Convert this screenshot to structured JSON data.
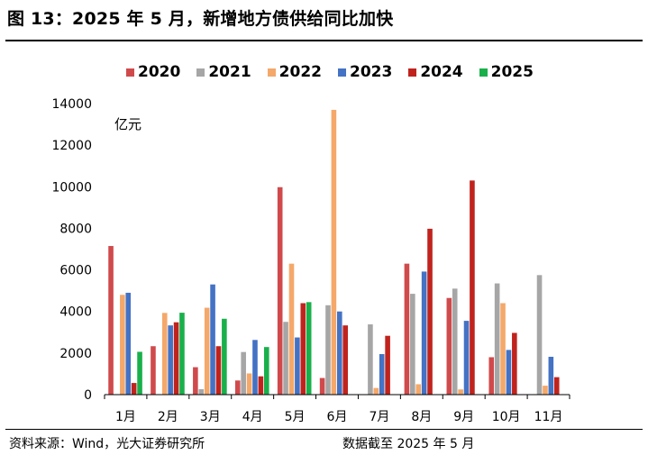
{
  "title": "图 13：2025 年 5 月，新增地方债供给同比加快",
  "footer_source": "资料来源：Wind，光大证券研究所",
  "footer_date": "数据截至 2025 年 5 月",
  "colors": {
    "2020": "#d04a4c",
    "2021": "#a6a6a6",
    "2022": "#f4a86a",
    "2023": "#4472c4",
    "2024": "#c0231d",
    "2025": "#19b04b"
  },
  "chart_data": {
    "type": "bar",
    "title": "",
    "xlabel": "",
    "ylabel": "亿元",
    "ylim": [
      0,
      14000
    ],
    "yticks": [
      0,
      2000,
      4000,
      6000,
      8000,
      10000,
      12000,
      14000
    ],
    "legend_position": "top",
    "grid": false,
    "categories": [
      "1月",
      "2月",
      "3月",
      "4月",
      "5月",
      "6月",
      "7月",
      "8月",
      "9月",
      "10月",
      "11月"
    ],
    "series": [
      {
        "name": "2020",
        "values": [
          7150,
          2330,
          1320,
          680,
          9980,
          800,
          0,
          6300,
          4650,
          1800,
          0
        ]
      },
      {
        "name": "2021",
        "values": [
          0,
          0,
          260,
          2050,
          3500,
          4300,
          3380,
          4850,
          5100,
          5350,
          5750
        ]
      },
      {
        "name": "2022",
        "values": [
          4800,
          3930,
          4180,
          1020,
          6300,
          13700,
          320,
          500,
          250,
          4400,
          430
        ]
      },
      {
        "name": "2023",
        "values": [
          4900,
          3330,
          5300,
          2630,
          2750,
          4000,
          1950,
          5920,
          3550,
          2150,
          1820
        ]
      },
      {
        "name": "2024",
        "values": [
          560,
          3480,
          2330,
          880,
          4400,
          3330,
          2830,
          7980,
          10300,
          2970,
          840
        ]
      },
      {
        "name": "2025",
        "values": [
          2060,
          3940,
          3650,
          2290,
          4450,
          null,
          null,
          null,
          null,
          null,
          null
        ]
      }
    ]
  }
}
